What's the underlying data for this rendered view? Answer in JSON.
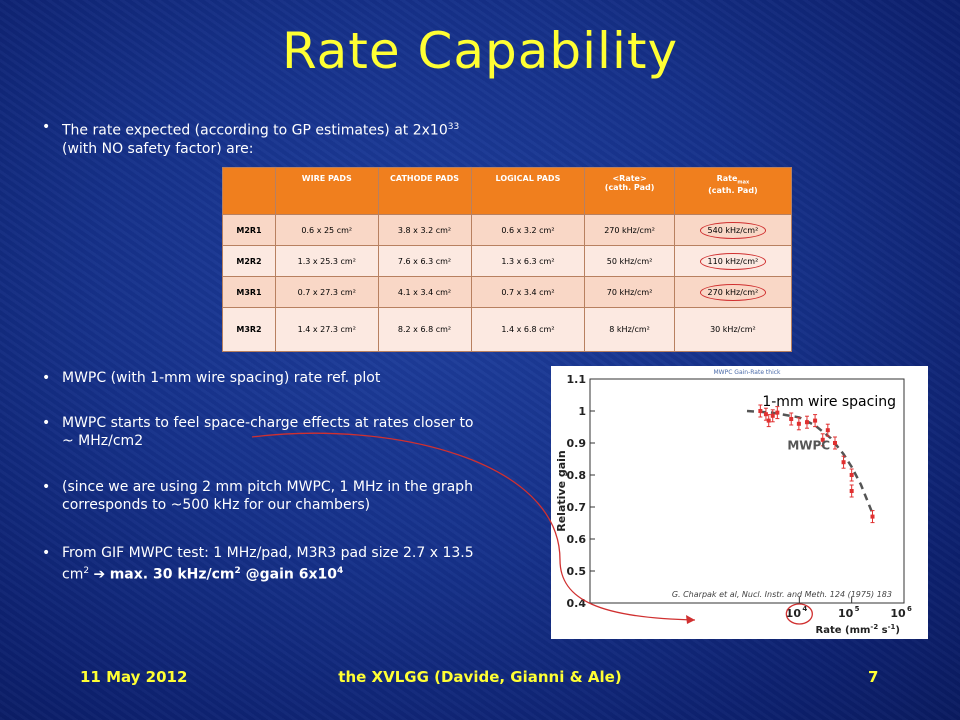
{
  "slide": {
    "title": "Rate Capability",
    "bullet_dot": "•",
    "bullet1": {
      "text_a": "The rate expected (according to GP estimates) at 2x10",
      "sup": "33",
      "text_b": " (with NO safety factor) are:"
    },
    "bullet2": "MWPC (with 1-mm wire spacing) rate ref. plot",
    "bullet3": "MWPC starts to feel space-charge effects at rates closer to ~ MHz/cm2",
    "bullet4": "(since we are using 2 mm pitch MWPC, 1 MHz in the graph corresponds to ~500 kHz for our chambers)",
    "bullet5": {
      "text_a": "From GIF MWPC test: 1 MHz/pad, M3R3 pad size 2.7 x 13.5 cm",
      "sup": "2",
      "arrow": " ➔ ",
      "bold_a": "max. 30 kHz/cm",
      "bold_sup": "2",
      "bold_b": " @gain 6x10",
      "bold_sup2": "4"
    }
  },
  "table": {
    "headers": {
      "wire": "WIRE PADS",
      "cathode": "CATHODE PADS",
      "logical": "LOGICAL PADS",
      "rate": "<Rate>",
      "rate_sub": "(cath. Pad)",
      "ratemax": "Rate",
      "ratemax_sub": "max",
      "ratemax_sub2": "(cath. Pad)"
    },
    "rows": [
      {
        "label": "M2R1",
        "wire": "0.6 x 25 cm²",
        "cathode": "3.8 x 3.2 cm²",
        "logical": "0.6 x 3.2 cm²",
        "rate": "270 kHz/cm²",
        "ratemax": "540 kHz/cm²"
      },
      {
        "label": "M2R2",
        "wire": "1.3 x 25.3 cm²",
        "cathode": "7.6 x 6.3 cm²",
        "logical": "1.3 x 6.3 cm²",
        "rate": "50 kHz/cm²",
        "ratemax": "110 kHz/cm²"
      },
      {
        "label": "M3R1",
        "wire": "0.7 x 27.3 cm²",
        "cathode": "4.1 x 3.4 cm²",
        "logical": "0.7 x 3.4 cm²",
        "rate": "70 kHz/cm²",
        "ratemax": "270 kHz/cm²"
      },
      {
        "label": "M3R2",
        "wire": "1.4 x 27.3 cm²",
        "cathode": "8.2 x 6.8 cm²",
        "logical": "1.4 x 6.8 cm²",
        "rate": "8 kHz/cm²",
        "ratemax": "30 kHz/cm²"
      }
    ]
  },
  "chart_data": {
    "type": "scatter",
    "title": "MWPC Gain-Rate thick",
    "xlabel_main": "Rate (mm",
    "xlabel_sup1": "-2",
    "xlabel_mid": " s",
    "xlabel_sup2": "-1",
    "xlabel_end": ")",
    "ylabel": "Relative gain",
    "x_scale": "log",
    "xlim": [
      1,
      1000000
    ],
    "ylim": [
      0.4,
      1.1
    ],
    "y_ticks": [
      "0.4",
      "0.5",
      "0.6",
      "0.7",
      "0.8",
      "0.9",
      "1",
      "1.1"
    ],
    "x_ticks": [
      {
        "value": 10000,
        "base": "10",
        "exp": "4"
      },
      {
        "value": 100000,
        "base": "10",
        "exp": "5"
      },
      {
        "value": 1000000,
        "base": "10",
        "exp": "6"
      }
    ],
    "series_label": "MWPC",
    "annotation": "1-mm wire spacing",
    "citation": "G. Charpak et al, Nucl. Instr. and Meth. 124 (1975) 183",
    "points": [
      {
        "x": 1800,
        "y": 1.0
      },
      {
        "x": 2300,
        "y": 0.99
      },
      {
        "x": 2600,
        "y": 0.97
      },
      {
        "x": 3100,
        "y": 0.985
      },
      {
        "x": 3800,
        "y": 0.995
      },
      {
        "x": 7000,
        "y": 0.975
      },
      {
        "x": 9800,
        "y": 0.96
      },
      {
        "x": 14000,
        "y": 0.965
      },
      {
        "x": 20000,
        "y": 0.97
      },
      {
        "x": 28000,
        "y": 0.91
      },
      {
        "x": 35000,
        "y": 0.94
      },
      {
        "x": 48000,
        "y": 0.9
      },
      {
        "x": 70000,
        "y": 0.84
      },
      {
        "x": 100000,
        "y": 0.8
      },
      {
        "x": 100000,
        "y": 0.75
      },
      {
        "x": 250000,
        "y": 0.67
      }
    ],
    "curve": [
      {
        "x": 1000,
        "y": 1.0
      },
      {
        "x": 3000,
        "y": 0.995
      },
      {
        "x": 10000,
        "y": 0.98
      },
      {
        "x": 20000,
        "y": 0.955
      },
      {
        "x": 40000,
        "y": 0.915
      },
      {
        "x": 70000,
        "y": 0.865
      },
      {
        "x": 100000,
        "y": 0.825
      },
      {
        "x": 150000,
        "y": 0.77
      },
      {
        "x": 250000,
        "y": 0.68
      }
    ],
    "colors": {
      "points": "#e03030",
      "curve": "#555555",
      "circle": "#d03030"
    }
  },
  "footer": {
    "date": "11 May 2012",
    "center": "the XVLGG (Davide, Gianni & Ale)",
    "page": "7"
  }
}
